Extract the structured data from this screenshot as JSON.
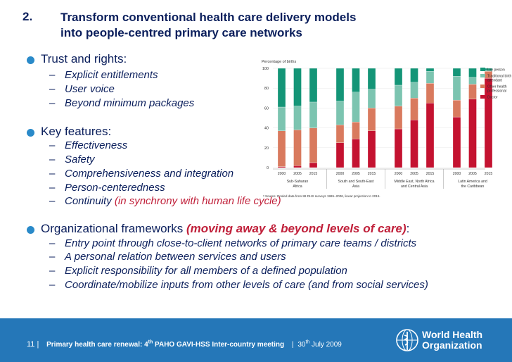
{
  "slide": {
    "number": "2.",
    "title_line1": "Transform conventional health care delivery models",
    "title_line2": "into people-centred primary care networks"
  },
  "sections": {
    "trust": {
      "heading": "Trust and rights:",
      "items": [
        "Explicit entitlements",
        "User voice",
        "Beyond minimum packages"
      ]
    },
    "features": {
      "heading": "Key features:",
      "items": [
        "Effectiveness",
        "Safety",
        "Comprehensiveness and integration",
        "Person-centeredness",
        "Continuity"
      ],
      "continuity_note": "(in synchrony with human life cycle)"
    },
    "org": {
      "heading": "Organizational frameworks",
      "heading_note": "(moving away & beyond levels of care)",
      "heading_colon": ":",
      "items": [
        "Entry point through close-to-client networks of primary care teams / districts",
        "A personal relation between services and users",
        "Explicit responsibility for all members of a defined population",
        "Coordinate/mobilize inputs from other levels of care (and from social services)"
      ]
    }
  },
  "dash": "–",
  "footer": {
    "page": "11",
    "separator": "|",
    "text_pre": "Primary health care renewal: 4",
    "text_sup": "th",
    "text_post": " PAHO GAVI-HSS Inter-country meeting",
    "date_pre": "30",
    "date_sup": "th",
    "date_post": " July 2009",
    "org_line1": "World Health",
    "org_line2": "Organization"
  },
  "colors": {
    "title": "#0b1f5c",
    "accent_red": "#c0203a",
    "footer_bg": "#2577b8",
    "bullet": "#2a8ac9"
  },
  "chart_data": {
    "type": "bar",
    "stacked": true,
    "ylabel": "Percentage of births",
    "ylim": [
      0,
      100
    ],
    "yticks": [
      0,
      20,
      40,
      60,
      80,
      100
    ],
    "categories": [
      "2000",
      "2005",
      "2015",
      "2000",
      "2005",
      "2015",
      "2000",
      "2005",
      "2015",
      "2000",
      "2005",
      "2015"
    ],
    "groups": [
      {
        "label1": "Sub-Saharan",
        "label2": "Africa"
      },
      {
        "label1": "South and South-East",
        "label2": "Asia"
      },
      {
        "label1": "Middle East, North Africa",
        "label2": "and Central Asia"
      },
      {
        "label1": "Latin America and",
        "label2": "the Caribbean"
      }
    ],
    "series": [
      {
        "name": "Doctor",
        "color": "#c41230",
        "values": [
          1,
          2,
          5,
          25,
          29,
          37,
          39,
          48,
          65,
          51,
          69,
          90
        ]
      },
      {
        "name": "Other health professional",
        "color": "#d97a5e",
        "values": [
          36,
          36,
          35,
          18,
          17,
          23,
          23,
          22,
          20,
          17,
          15,
          7
        ]
      },
      {
        "name": "Traditional birth attendant",
        "color": "#7cc4b0",
        "values": [
          24,
          24,
          26,
          24,
          30,
          19,
          21,
          16,
          12,
          24,
          7,
          1
        ]
      },
      {
        "name": "Lay person",
        "color": "#149577",
        "values": [
          39,
          38,
          34,
          33,
          24,
          21,
          17,
          14,
          3,
          8,
          9,
          2
        ]
      }
    ],
    "legend": [
      {
        "line1": "Lay person",
        "line2": "",
        "line3": ""
      },
      {
        "line1": "Traditional birth",
        "line2": "attendant",
        "line3": ""
      },
      {
        "line1": "Other health",
        "line2": "professional",
        "line3": ""
      },
      {
        "line1": "Doctor",
        "line2": "",
        "line3": ""
      }
    ],
    "source": "ᵃ Source: Pooled data from 86 DHS surveys 1995–2006, linear projection to 2015."
  }
}
